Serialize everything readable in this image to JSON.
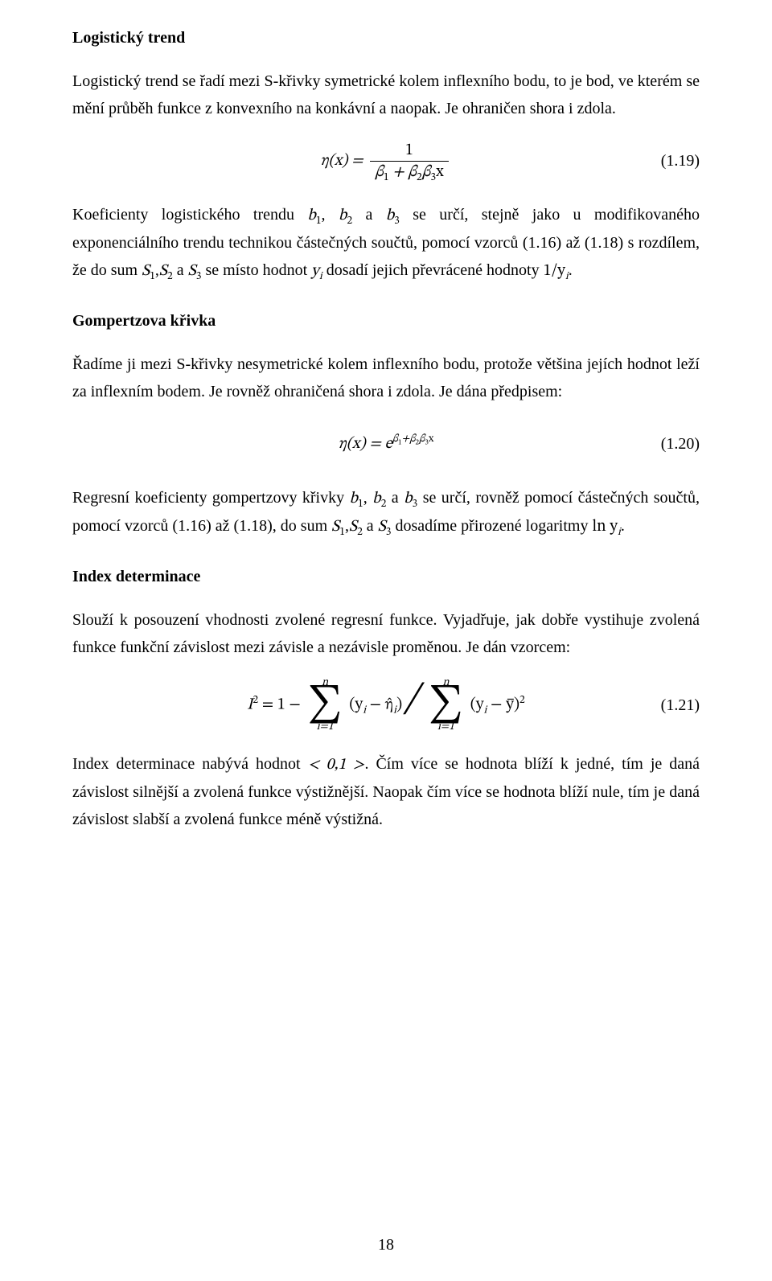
{
  "pageNumber": "18",
  "section1": {
    "title": "Logistický trend",
    "p1": "Logistický trend se řadí mezi S-křivky symetrické kolem inflexního bodu, to je bod, ve kterém se mění průběh funkce z konvexního na konkávní a naopak. Je ohraničen shora i zdola."
  },
  "eq119": {
    "num": "(1.19)",
    "lhs": "η(x) = ",
    "frac_num": "1",
    "frac_den_pre": "β",
    "frac_den": "1",
    "frac_den_mid": " + β",
    "frac_den_s2": "2",
    "frac_den_b": "β",
    "frac_den_s3": "3",
    "frac_den_x": "x"
  },
  "section1_after": {
    "p2_pre": "Koeficienty logistického trendu ",
    "b1": "b",
    "s1": "1",
    "comma": ", ",
    "b2": "b",
    "s2": "2",
    "a": " a ",
    "b3": "b",
    "s3": "3",
    "p2_mid": " se určí, stejně jako u modifikovaného exponenciálního trendu technikou částečných součtů, pomocí vzorců (1.16) až (1.18) s rozdílem, že do sum ",
    "S1": "S",
    "Ss1": "1",
    "comma2": ",",
    "S2": "S",
    "Ss2": "2",
    "a2": " a  ",
    "S3": "S",
    "Ss3": "3",
    "p2_mid2": " se místo hodnot ",
    "yi": "y",
    "yi_sub": "i",
    "p2_mid3": " dosadí jejich převrácené hodnoty ",
    "inv": "1/y",
    "inv_sub": "i",
    "p2_end": "."
  },
  "section2": {
    "title": "Gompertzova křivka",
    "p1": "Řadíme ji mezi S-křivky nesymetrické kolem inflexního bodu, protože většina jejích hodnot leží za inflexním bodem. Je rovněž ohraničená shora i zdola. Je dána předpisem:"
  },
  "eq120": {
    "num": "(1.20)",
    "lhs": "η(x) =  e",
    "exp_pre": "β",
    "exp_s1": "1",
    "exp_plus": "+β",
    "exp_s2": "2",
    "exp_b3": "β",
    "exp_s3": "3",
    "exp_x": "x"
  },
  "section2_after": {
    "p2_pre": "Regresní koeficienty gompertzovy křivky ",
    "b1": "b",
    "s1": "1",
    "comma": ", ",
    "b2": "b",
    "s2": "2",
    "a": " a ",
    "b3": "b",
    "s3": "3",
    "p2_mid": " se určí, rovněž pomocí částečných součtů, pomocí vzorců (1.16) až (1.18), do sum ",
    "S1": "S",
    "Ss1": "1",
    "comma2": ",",
    "S2": "S",
    "Ss2": "2",
    "a2": " a  ",
    "S3": "S",
    "Ss3": "3",
    "p2_mid2": " dosadíme přirozené logaritmy ",
    "ln": "ln y",
    "ln_sub": "i",
    "end": "."
  },
  "section3": {
    "title": "Index determinace",
    "p1": "Slouží k posouzení vhodnosti zvolené regresní funkce. Vyjadřuje, jak dobře vystihuje zvolená funkce funkční závislost mezi závisle a nezávisle proměnou. Je dán vzorcem:"
  },
  "eq121": {
    "num": "(1.21)",
    "I": "I",
    "sq": "2",
    "eq": " = 1 − ",
    "sum_top": "n",
    "sum_bot": "i=1",
    "term1_open": "(y",
    "term1_i": "i",
    "term1_minus": " − η̂",
    "term1_i2": "i",
    "term1_close": ")",
    "term2_open": "(y",
    "term2_i": "i",
    "term2_minus": " − y̅)",
    "term2_sq": "2"
  },
  "section3_after": {
    "p2_pre": "Index determinace nabývá hodnot ",
    "range": "< 0,1 >",
    "p2_mid": ". Čím více se hodnota blíží k jedné, tím je daná závislost silnější a zvolená funkce výstižnější. Naopak čím více se hodnota blíží nule, tím je daná závislost slabší a zvolená funkce méně výstižná."
  }
}
